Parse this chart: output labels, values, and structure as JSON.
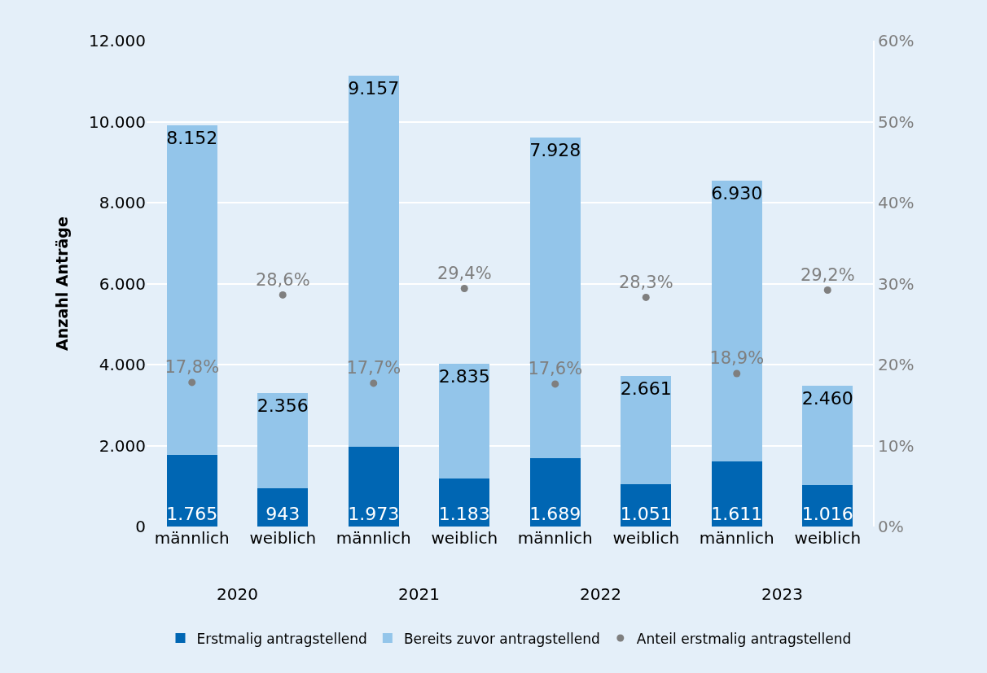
{
  "chart_data": {
    "type": "bar",
    "stacked": true,
    "ylabel": "Anzahl Anträge",
    "categories": [
      "männlich",
      "weiblich",
      "männlich",
      "weiblich",
      "männlich",
      "weiblich",
      "männlich",
      "weiblich"
    ],
    "series": [
      {
        "name": "Erstmalig antragstellend",
        "color": "#0066b3",
        "values": [
          1765,
          943,
          1973,
          1183,
          1689,
          1051,
          1611,
          1016
        ],
        "value_labels": [
          "1.765",
          "943",
          "1.973",
          "1.183",
          "1.689",
          "1.051",
          "1.611",
          "1.016"
        ]
      },
      {
        "name": "Bereits zuvor antragstellend",
        "color": "#93c5ea",
        "values": [
          8152,
          2356,
          9157,
          2835,
          7928,
          2661,
          6930,
          2460
        ],
        "value_labels": [
          "8.152",
          "2.356",
          "9.157",
          "2.835",
          "7.928",
          "2.661",
          "6.930",
          "2.460"
        ]
      },
      {
        "name": "Anteil erstmalig antragstellend",
        "type": "scatter",
        "axis": "y2",
        "marker": "circle",
        "color": "#7f7f7f",
        "values": [
          17.8,
          28.6,
          17.7,
          29.4,
          17.6,
          28.3,
          18.9,
          29.2
        ],
        "value_labels": [
          "17,8%",
          "28,6%",
          "17,7%",
          "29,4%",
          "17,6%",
          "28,3%",
          "18,9%",
          "29,2%"
        ]
      }
    ],
    "ylim": [
      0,
      12000
    ],
    "yticks": [
      0,
      {
        "value": 2000,
        "label": "2.000"
      },
      {
        "value": 4000,
        "label": "4.000"
      },
      {
        "value": 6000,
        "label": "6.000"
      },
      {
        "value": 8000,
        "label": "8.000"
      },
      {
        "value": 10000,
        "label": "10.000"
      },
      {
        "value": 12000,
        "label": "12.000"
      }
    ],
    "y2lim": [
      0,
      60
    ],
    "y2ticks": [
      {
        "value": 0,
        "label": "0%"
      },
      {
        "value": 10,
        "label": "10%"
      },
      {
        "value": 20,
        "label": "20%"
      },
      {
        "value": 30,
        "label": "30%"
      },
      {
        "value": 40,
        "label": "40%"
      },
      {
        "value": 50,
        "label": "50%"
      },
      {
        "value": 60,
        "label": "60%"
      }
    ],
    "grid": "y",
    "legend": "bottom",
    "annotations": [
      "2020",
      "2021",
      "2022",
      "2023"
    ]
  }
}
